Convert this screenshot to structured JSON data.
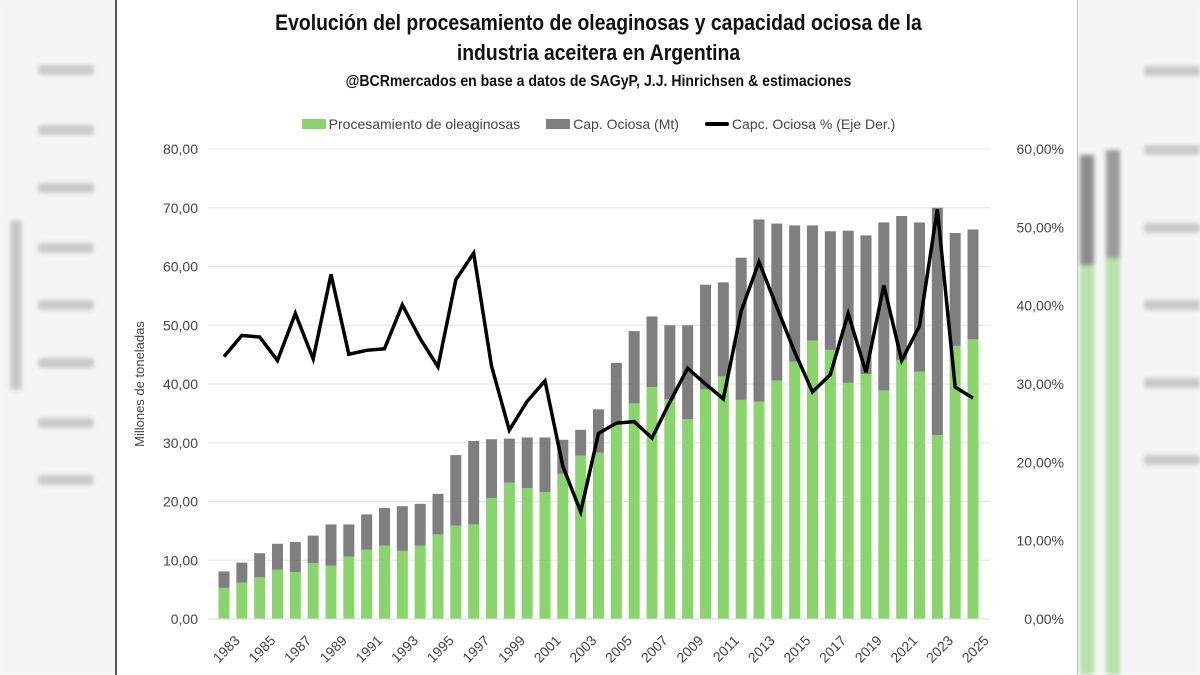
{
  "chart_data": {
    "type": "bar",
    "stacked": true,
    "title": "Evolución del procesamiento de oleaginosas y capacidad ociosa de la industria aceitera en Argentina",
    "subtitle": "@BCRmercados en base a datos de SAGyP, J.J. Hinrichsen & estimaciones",
    "ylabel": "Millones de toneladas",
    "ylabel_right": "",
    "ylim": [
      0,
      80
    ],
    "ylim_right": [
      0,
      60
    ],
    "yticks": [
      "0,00",
      "10,00",
      "20,00",
      "30,00",
      "40,00",
      "50,00",
      "60,00",
      "70,00",
      "80,00"
    ],
    "yticks_right": [
      "0,00%",
      "10,00%",
      "20,00%",
      "30,00%",
      "40,00%",
      "50,00%",
      "60,00%"
    ],
    "grid": true,
    "legend_position": "top",
    "legend": [
      "Procesamiento de oleaginosas",
      "Cap. Ociosa (Mt)",
      "Capc. Ociosa % (Eje Der.)"
    ],
    "categories": [
      "1983",
      "1984",
      "1985",
      "1986",
      "1987",
      "1988",
      "1989",
      "1990",
      "1991",
      "1992",
      "1993",
      "1994",
      "1995",
      "1996",
      "1997",
      "1998",
      "1999",
      "2000",
      "2001",
      "2002",
      "2003",
      "2004",
      "2005",
      "2006",
      "2007",
      "2008",
      "2009",
      "2010",
      "2011",
      "2012",
      "2013",
      "2014",
      "2015",
      "2016",
      "2017",
      "2018",
      "2019",
      "2020",
      "2021",
      "2022",
      "2023",
      "2024",
      "2025"
    ],
    "xtick_labels": [
      "1983",
      "1985",
      "1987",
      "1989",
      "1991",
      "1993",
      "1995",
      "1997",
      "1999",
      "2001",
      "2003",
      "2005",
      "2007",
      "2009",
      "2011",
      "2013",
      "2015",
      "2017",
      "2019",
      "2021",
      "2023",
      "2025"
    ],
    "series": [
      {
        "name": "Procesamiento de oleaginosas",
        "type": "bar",
        "axis": "left",
        "color": "#8ad46e",
        "values": [
          5.3,
          6.2,
          7.1,
          8.4,
          8.0,
          9.5,
          9.1,
          10.6,
          11.8,
          12.5,
          11.6,
          12.5,
          14.4,
          15.9,
          16.1,
          20.6,
          23.2,
          22.3,
          21.6,
          24.7,
          27.8,
          28.3,
          33.1,
          36.7,
          39.5,
          37.4,
          34.0,
          39.1,
          41.3,
          37.3,
          37.0,
          40.6,
          43.8,
          47.4,
          45.8,
          40.2,
          41.7,
          38.9,
          44.1,
          42.1,
          31.3,
          46.5,
          47.6
        ]
      },
      {
        "name": "Cap. Ociosa (Mt)",
        "type": "bar",
        "axis": "left",
        "color": "#7f7f7f",
        "values": [
          2.8,
          3.4,
          4.1,
          4.4,
          5.1,
          4.7,
          7.0,
          5.5,
          6.0,
          6.4,
          7.6,
          7.1,
          6.9,
          12.0,
          14.2,
          10.0,
          7.5,
          8.6,
          9.3,
          5.8,
          4.4,
          7.4,
          10.5,
          12.3,
          12.0,
          12.6,
          16.0,
          17.8,
          16.0,
          24.2,
          31.0,
          26.7,
          23.2,
          19.6,
          20.2,
          25.9,
          23.6,
          28.6,
          24.5,
          25.4,
          38.7,
          19.2,
          18.7
        ]
      },
      {
        "name": "Capc. Ociosa % (Eje Der.)",
        "type": "line",
        "axis": "right",
        "color": "#000000",
        "values": [
          33.5,
          36.2,
          36.0,
          33.0,
          39.0,
          33.2,
          44.0,
          33.8,
          34.3,
          34.5,
          40.1,
          35.8,
          32.2,
          43.3,
          46.7,
          32.3,
          24.1,
          27.8,
          30.4,
          19.5,
          13.7,
          23.7,
          25.0,
          25.2,
          23.1,
          27.7,
          32.0,
          30.0,
          28.1,
          39.3,
          45.6,
          39.8,
          34.1,
          29.0,
          31.2,
          39.0,
          31.5,
          42.6,
          33.0,
          37.4,
          52.3,
          29.6,
          28.2
        ]
      }
    ]
  }
}
